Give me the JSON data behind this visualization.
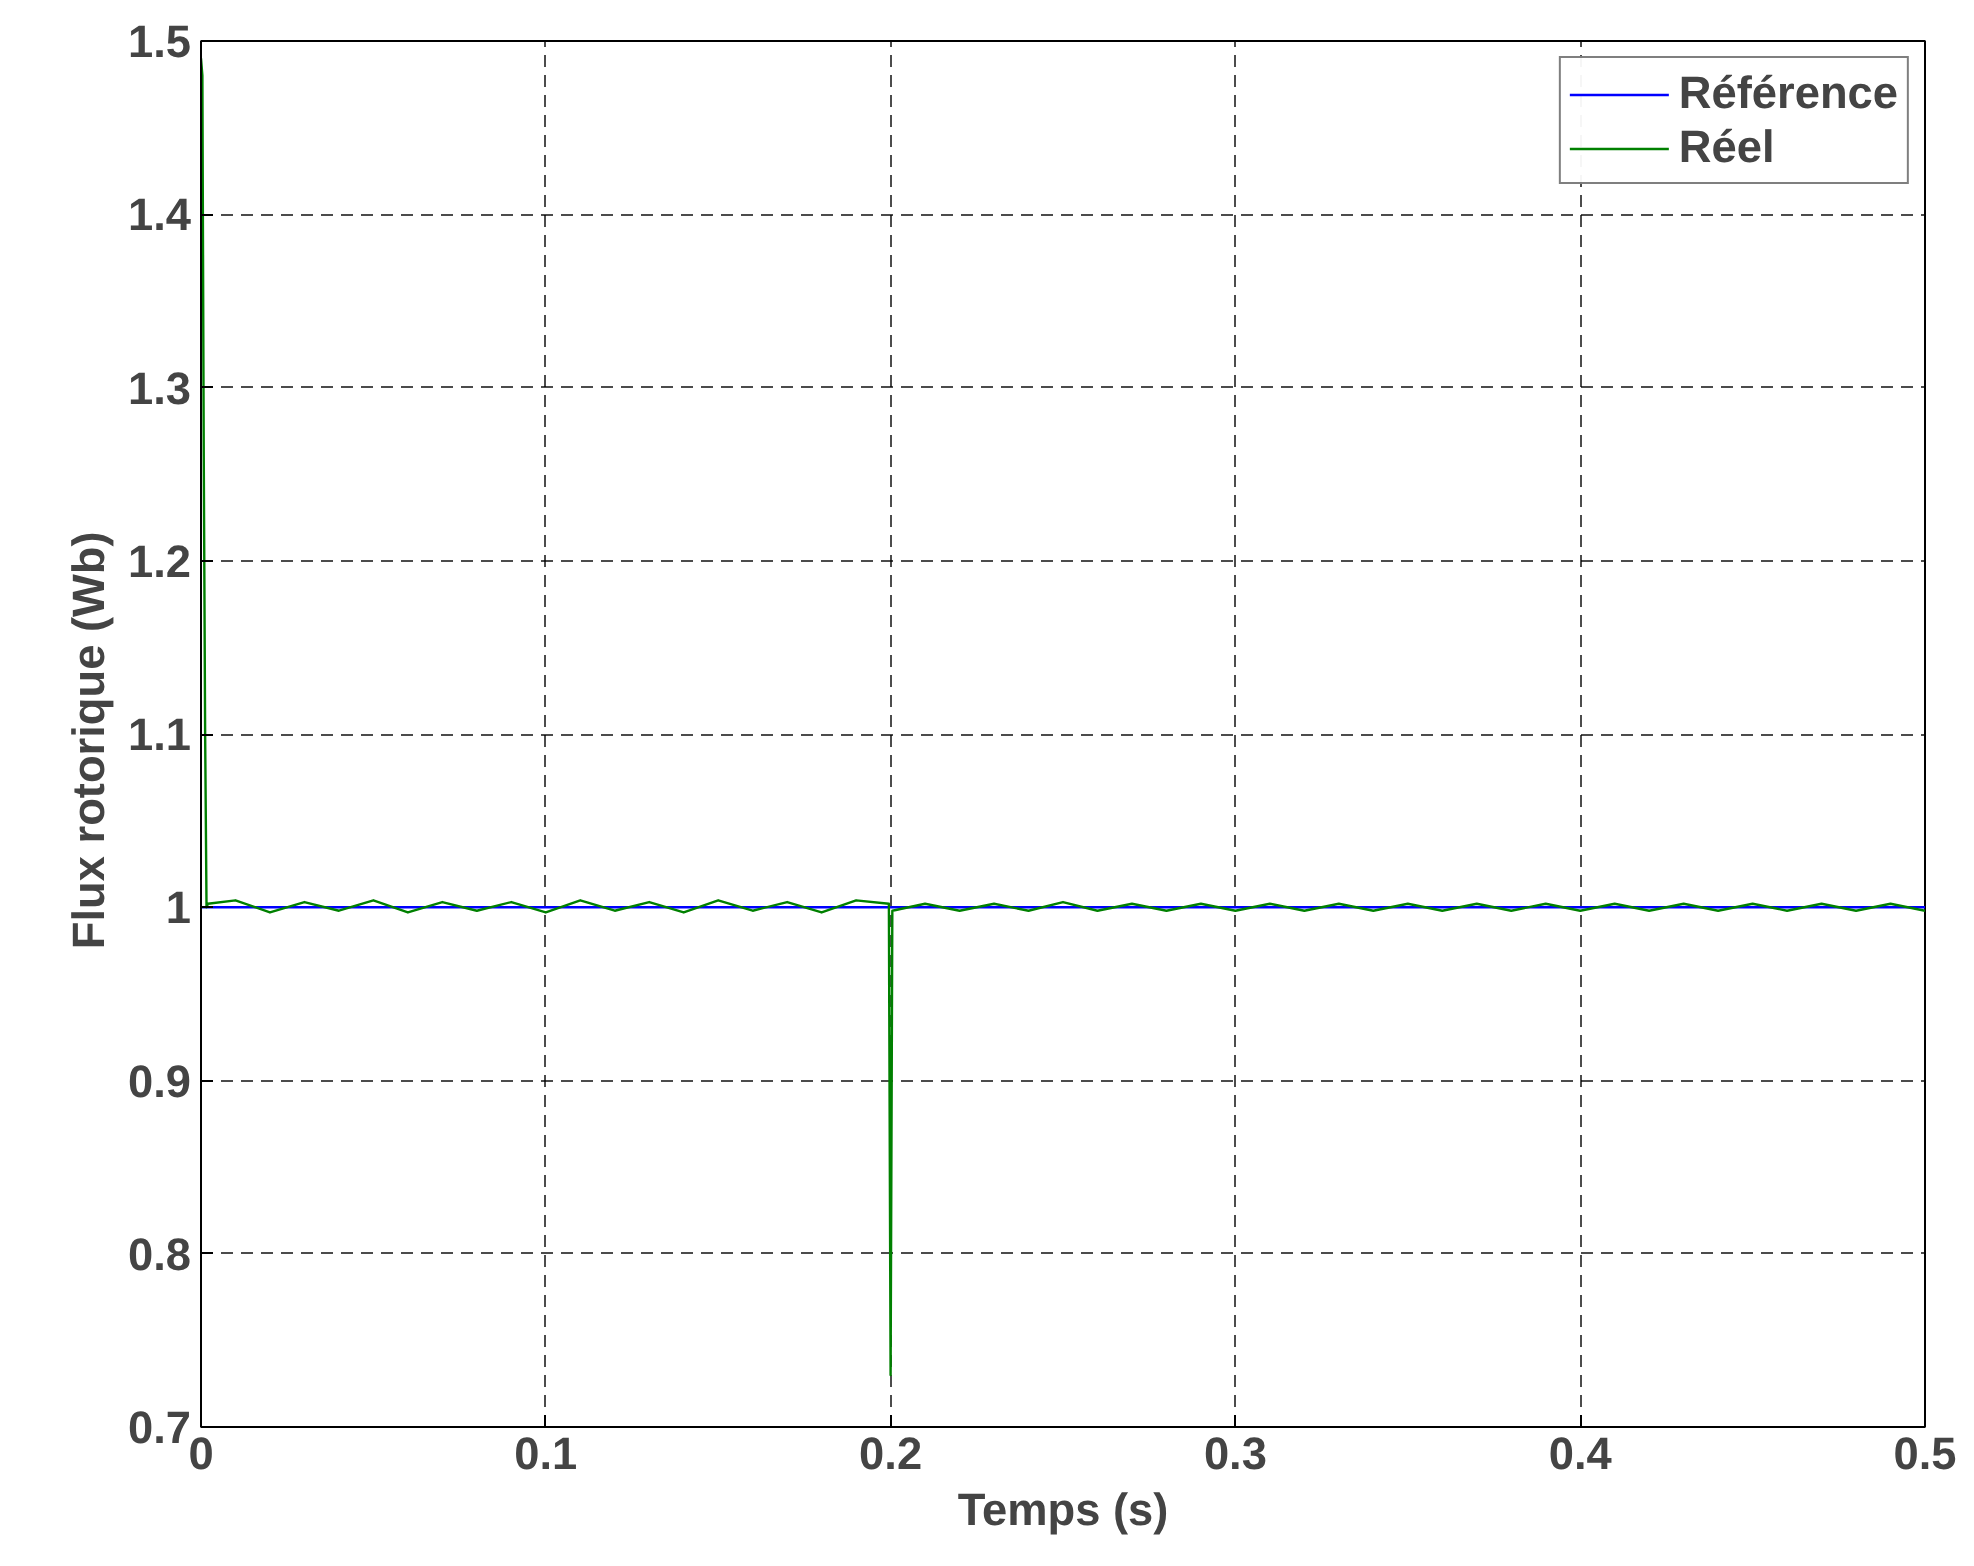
{
  "chart_data": {
    "type": "line",
    "xlabel": "Temps (s)",
    "ylabel": "Flux  rotorique (Wb)",
    "xlim": [
      0,
      0.5
    ],
    "ylim": [
      0.7,
      1.5
    ],
    "xticks": [
      0,
      0.1,
      0.2,
      0.3,
      0.4,
      0.5
    ],
    "yticks": [
      0.7,
      0.8,
      0.9,
      1,
      1.1,
      1.2,
      1.3,
      1.4,
      1.5
    ],
    "grid": true,
    "legend": "top right",
    "series": [
      {
        "name": "Référence",
        "color": "#0000ff",
        "x": [
          0,
          0.5
        ],
        "values": [
          1,
          1
        ]
      },
      {
        "name": "Réel",
        "color": "#008000",
        "x": [
          0,
          0.0004,
          0.0008,
          0.0012,
          0.0016,
          0.002,
          0.01,
          0.02,
          0.03,
          0.04,
          0.05,
          0.06,
          0.07,
          0.08,
          0.09,
          0.1,
          0.11,
          0.12,
          0.13,
          0.14,
          0.15,
          0.16,
          0.17,
          0.18,
          0.19,
          0.1995,
          0.2,
          0.2005,
          0.21,
          0.22,
          0.23,
          0.24,
          0.25,
          0.26,
          0.27,
          0.28,
          0.29,
          0.3,
          0.31,
          0.32,
          0.33,
          0.34,
          0.35,
          0.36,
          0.37,
          0.38,
          0.39,
          0.4,
          0.41,
          0.42,
          0.43,
          0.44,
          0.45,
          0.46,
          0.47,
          0.48,
          0.49,
          0.5
        ],
        "values": [
          1.49,
          1.48,
          1.26,
          1.1,
          1.0,
          1.002,
          1.004,
          0.997,
          1.003,
          0.998,
          1.004,
          0.997,
          1.003,
          0.998,
          1.003,
          0.997,
          1.004,
          0.998,
          1.003,
          0.997,
          1.004,
          0.998,
          1.003,
          0.997,
          1.004,
          1.002,
          0.73,
          0.998,
          1.002,
          0.998,
          1.002,
          0.998,
          1.003,
          0.998,
          1.002,
          0.998,
          1.002,
          0.998,
          1.002,
          0.998,
          1.002,
          0.998,
          1.002,
          0.998,
          1.002,
          0.998,
          1.002,
          0.998,
          1.002,
          0.998,
          1.002,
          0.998,
          1.002,
          0.998,
          1.002,
          0.998,
          1.002,
          0.998
        ]
      }
    ]
  }
}
